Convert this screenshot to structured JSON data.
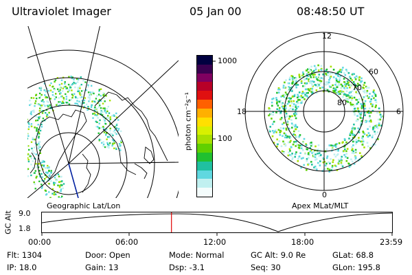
{
  "header": {
    "instrument": "Ultraviolet Imager",
    "date": "05 Jan 00",
    "time": "08:48:50 UT"
  },
  "colorbar": {
    "unit_label": "photon cm⁻²s⁻¹",
    "ticks": [
      "1000",
      "100"
    ],
    "colors": [
      "#000040",
      "#3a0050",
      "#800060",
      "#b80028",
      "#e01010",
      "#ff6000",
      "#ffb000",
      "#ffe000",
      "#d8f000",
      "#a8e000",
      "#60d000",
      "#20c030",
      "#20c0a0",
      "#60d8e0",
      "#c0f0f0",
      "#f4fcfc"
    ]
  },
  "left_map": {
    "label": "Geographic Lat/Lon"
  },
  "right_map": {
    "label": "Apex MLat/MLT",
    "mlt_labels": {
      "top": "12",
      "left": "18",
      "right": "6",
      "bottom": "0"
    },
    "lat_labels": [
      "60",
      "70",
      "80"
    ]
  },
  "timeline": {
    "ylabel": "GC Alt",
    "ymax": "9.0",
    "ymin": "1.8",
    "xticks": [
      "00:00",
      "06:00",
      "12:00",
      "18:00",
      "23:59"
    ],
    "current_time_fraction": 0.37
  },
  "info": {
    "rows": [
      [
        {
          "key": "flt",
          "text": "Flt: 1304"
        },
        {
          "key": "door",
          "text": "Door: Open"
        },
        {
          "key": "mode",
          "text": "Mode: Normal"
        },
        {
          "key": "gcalt",
          "text": "GC Alt: 9.0 Re"
        },
        {
          "key": "glat",
          "text": "GLat:  68.8"
        }
      ],
      [
        {
          "key": "ip",
          "text": "IP: 18.0"
        },
        {
          "key": "gain",
          "text": "Gain: 13"
        },
        {
          "key": "dsp",
          "text": "Dsp:    -3.1"
        },
        {
          "key": "seq",
          "text": "Seq: 30"
        },
        {
          "key": "glon",
          "text": "GLon: 195.8"
        }
      ]
    ]
  }
}
